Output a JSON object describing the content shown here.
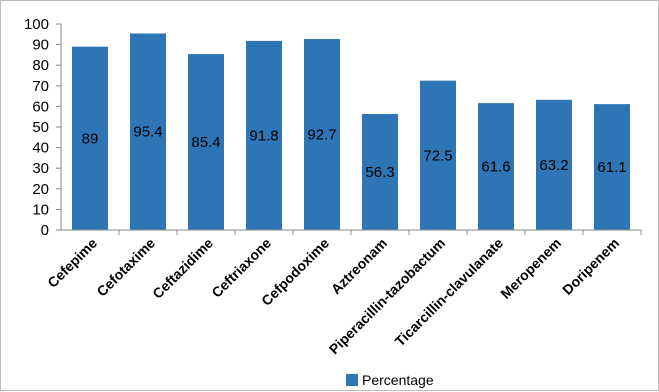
{
  "chart_data": {
    "type": "bar",
    "title": "",
    "xlabel": "",
    "ylabel": "",
    "categories": [
      "Cefepime",
      "Cefotaxime",
      "Ceftazidime",
      "Ceftriaxone",
      "Cefpodoxime",
      "Aztreonam",
      "Piperacillin-tazobactum",
      "Ticarcillin-clavulanate",
      "Meropenem",
      "Doripenem"
    ],
    "series": [
      {
        "name": "Percentage",
        "values": [
          89,
          95.4,
          85.4,
          91.8,
          92.7,
          56.3,
          72.5,
          61.6,
          63.2,
          61.1
        ],
        "labels": [
          "89",
          "95.4",
          "85.4",
          "91.8",
          "92.7",
          "56.3",
          "72.5",
          "61.6",
          "63.2",
          "61.1"
        ]
      }
    ],
    "ylim": [
      0,
      100
    ],
    "yticks": [
      "0",
      "10",
      "20",
      "30",
      "40",
      "50",
      "60",
      "70",
      "80",
      "90",
      "100"
    ],
    "grid": false,
    "legend": "bottom",
    "bar_color": "#2E75B6"
  }
}
